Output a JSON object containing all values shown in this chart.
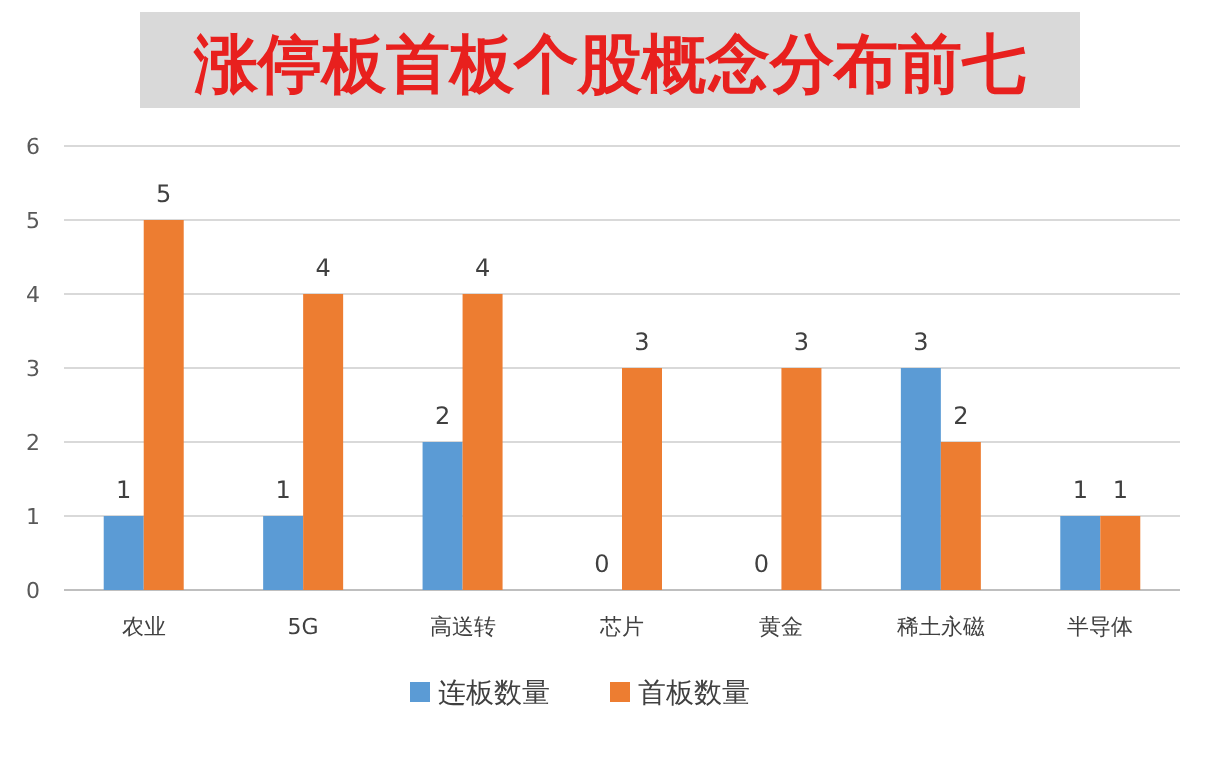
{
  "chart_data": {
    "type": "bar",
    "title": "涨停板首板个股概念分布前七",
    "categories": [
      "农业",
      "5G",
      "高送转",
      "芯片",
      "黄金",
      "稀土永磁",
      "半导体"
    ],
    "series": [
      {
        "name": "连板数量",
        "color": "#5b9bd5",
        "values": [
          1,
          1,
          2,
          0,
          0,
          3,
          1
        ]
      },
      {
        "name": "首板数量",
        "color": "#ed7d31",
        "values": [
          5,
          4,
          4,
          3,
          3,
          2,
          1
        ]
      }
    ],
    "ylim": [
      0,
      6
    ],
    "yticks": [
      0,
      1,
      2,
      3,
      4,
      5,
      6
    ],
    "grid": "y",
    "legend": "bottom",
    "data_labels": true
  }
}
